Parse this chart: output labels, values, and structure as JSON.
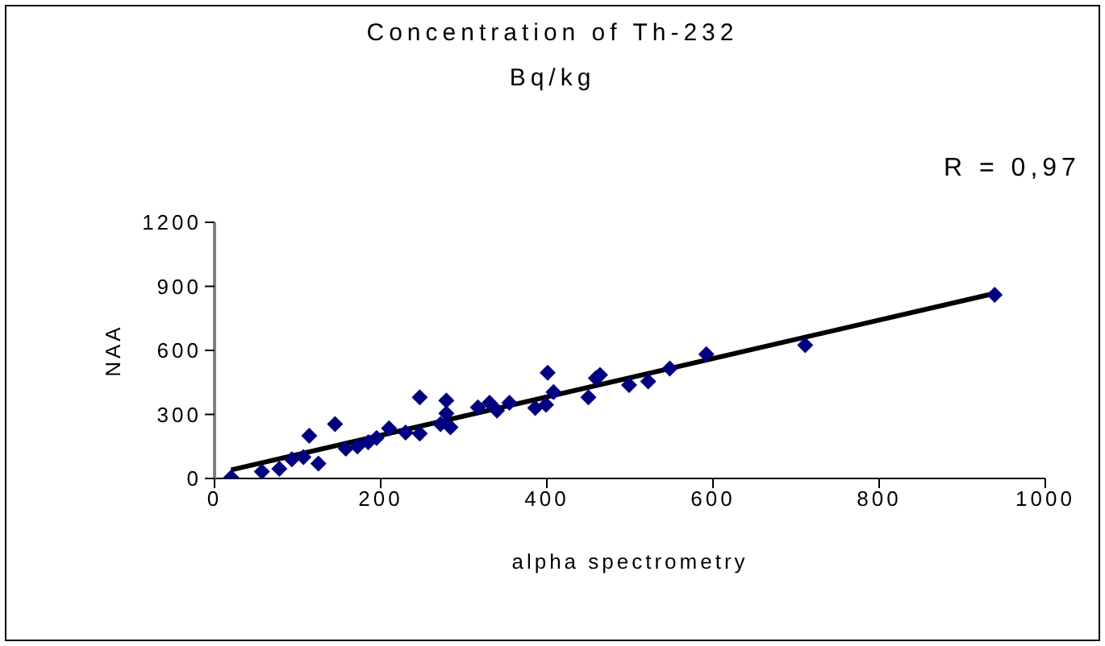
{
  "chart_data": {
    "type": "scatter",
    "title": "Concentration of Th-232",
    "subtitle": "Bq/kg",
    "xlabel": "alpha spectrometry",
    "ylabel": "NAA",
    "annotations": [
      "R = 0,97"
    ],
    "xlim": [
      0,
      1000
    ],
    "xticks": [
      0,
      200,
      400,
      600,
      800,
      1000
    ],
    "ylim": [
      0,
      1200
    ],
    "yticks": [
      0,
      300,
      600,
      900,
      1200
    ],
    "grid": false,
    "legend": false,
    "series": [
      {
        "marker": "diamond",
        "color": "#000080",
        "x": [
          20,
          57,
          78,
          93,
          107,
          114,
          125,
          145,
          158,
          172,
          185,
          195,
          210,
          230,
          247,
          247,
          272,
          279,
          279,
          284,
          317,
          331,
          340,
          355,
          386,
          399,
          401,
          408,
          450,
          459,
          464,
          499,
          522,
          548,
          592,
          711,
          939
        ],
        "values": [
          5,
          32,
          45,
          90,
          100,
          200,
          70,
          255,
          140,
          150,
          170,
          190,
          235,
          215,
          210,
          380,
          255,
          365,
          305,
          240,
          333,
          355,
          318,
          355,
          330,
          345,
          495,
          405,
          380,
          470,
          485,
          438,
          455,
          515,
          582,
          625,
          860
        ]
      },
      {
        "type": "line",
        "marker": "none",
        "color": "#000000",
        "x": [
          20,
          940
        ],
        "values": [
          40,
          868
        ]
      }
    ]
  }
}
